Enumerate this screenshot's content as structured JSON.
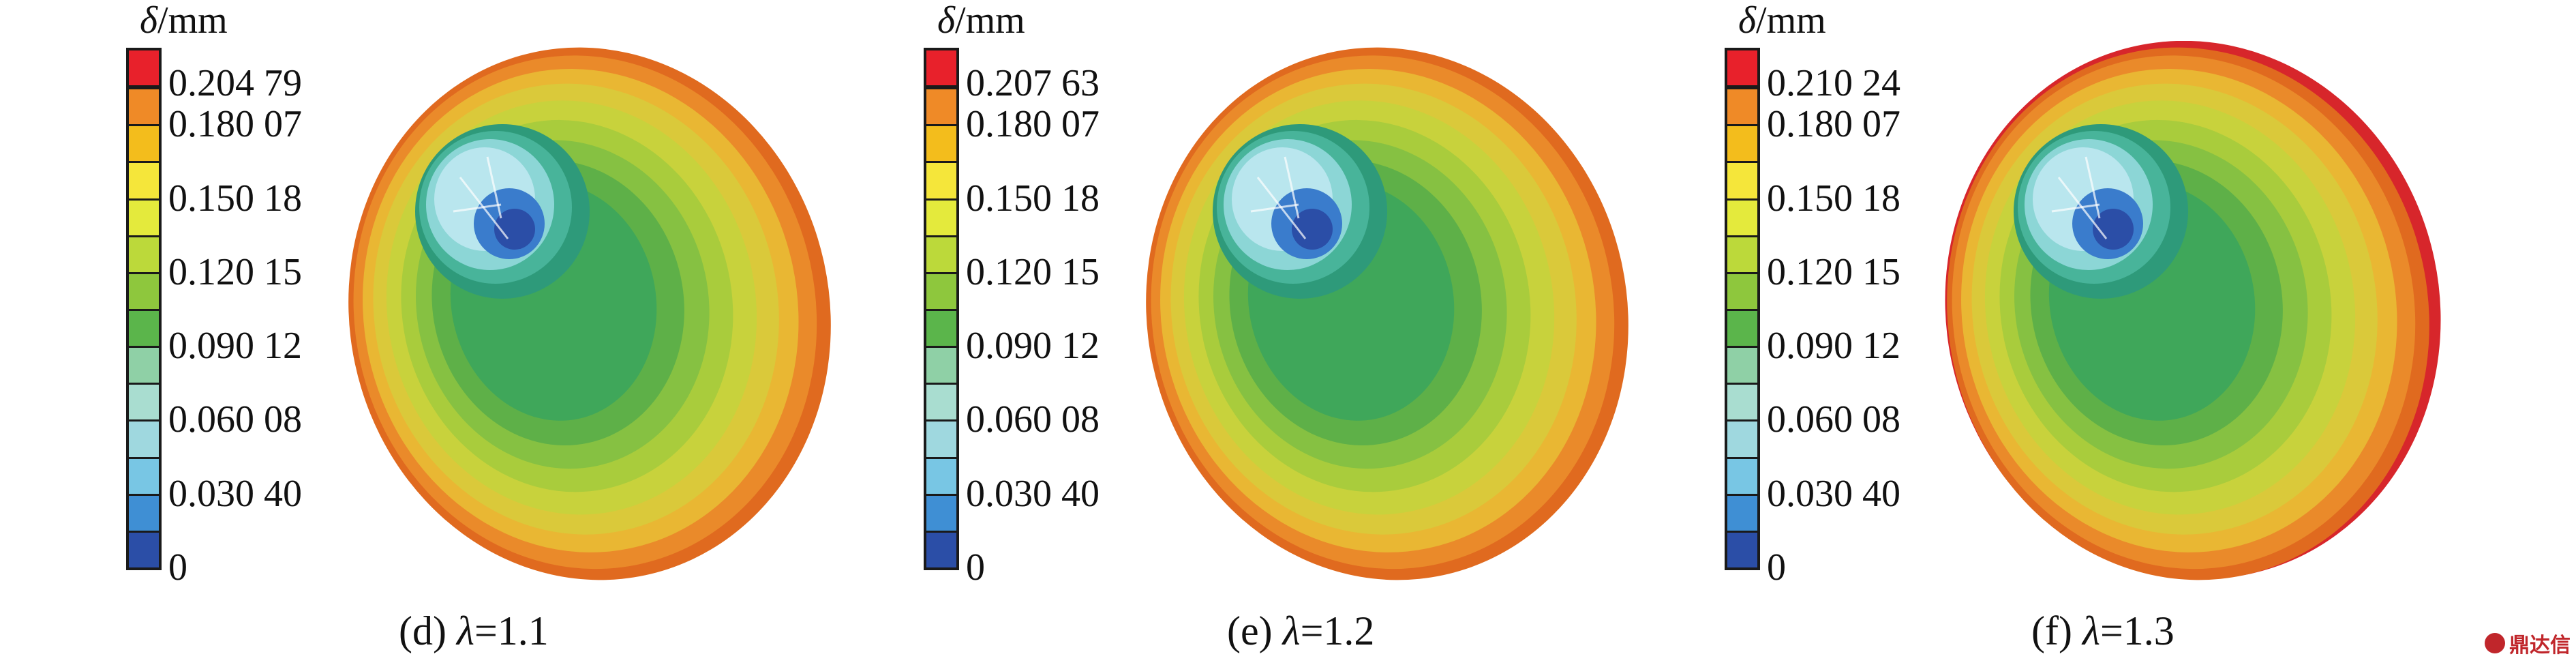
{
  "colorbar_colors": [
    "#e8212b",
    "#ef8a27",
    "#f3bd1c",
    "#f5e63a",
    "#e4ea3c",
    "#bcd93a",
    "#8ec73d",
    "#5bb54b",
    "#8fd0a6",
    "#a9ddd0",
    "#9fd8df",
    "#78c6e4",
    "#3f8fd4",
    "#2b4ea7"
  ],
  "panels": [
    {
      "unit": {
        "symbol": "δ",
        "text": "/mm"
      },
      "ticks": [
        "0.204 79",
        "0.180 07",
        "0.150 18",
        "0.120 15",
        "0.090 12",
        "0.060 08",
        "0.030 40",
        "0"
      ],
      "caption": {
        "prefix": "(d) ",
        "symbol": "λ",
        "value": "=1.1"
      }
    },
    {
      "unit": {
        "symbol": "δ",
        "text": "/mm"
      },
      "ticks": [
        "0.207 63",
        "0.180 07",
        "0.150 18",
        "0.120 15",
        "0.090 12",
        "0.060 08",
        "0.030 40",
        "0"
      ],
      "caption": {
        "prefix": "(e) ",
        "symbol": "λ",
        "value": "=1.2"
      }
    },
    {
      "unit": {
        "symbol": "δ",
        "text": "/mm"
      },
      "ticks": [
        "0.210 24",
        "0.180 07",
        "0.150 18",
        "0.120 15",
        "0.090 12",
        "0.060 08",
        "0.030 40",
        "0"
      ],
      "caption": {
        "prefix": "(f) ",
        "symbol": "λ",
        "value": "=1.3"
      }
    }
  ],
  "watermark": {
    "text": "鼎达信",
    "icon": "logo-icon"
  }
}
